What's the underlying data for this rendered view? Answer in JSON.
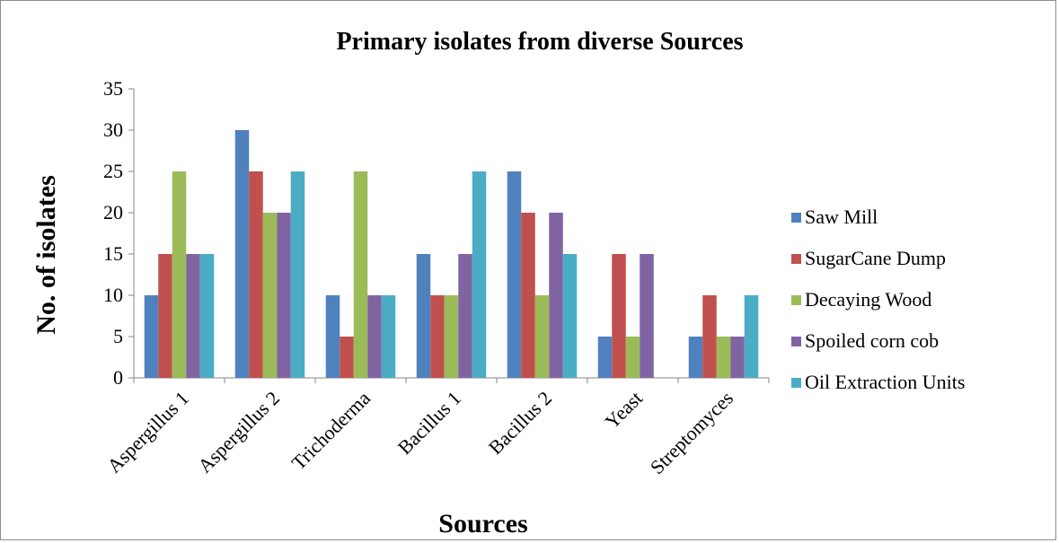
{
  "chart_data": {
    "type": "bar",
    "title": "Primary isolates from diverse Sources",
    "xlabel": "Sources",
    "ylabel": "No. of  isolates",
    "ylim": [
      0,
      35
    ],
    "yticks": [
      0,
      5,
      10,
      15,
      20,
      25,
      30,
      35
    ],
    "grid": false,
    "legend_position": "right",
    "categories": [
      "Aspergillus 1",
      "Aspergillus 2",
      "Trichoderma",
      "Bacillus 1",
      "Bacillus 2",
      "Yeast",
      "Streptomyces"
    ],
    "series": [
      {
        "name": "Saw Mill",
        "color": "#4f81bd",
        "values": [
          10,
          30,
          10,
          15,
          25,
          5,
          5
        ]
      },
      {
        "name": "SugarCane Dump",
        "color": "#c0504d",
        "values": [
          15,
          25,
          5,
          10,
          20,
          15,
          10
        ]
      },
      {
        "name": "Decaying Wood",
        "color": "#9bbb59",
        "values": [
          25,
          20,
          25,
          10,
          10,
          5,
          5
        ]
      },
      {
        "name": "Spoiled corn cob",
        "color": "#8064a2",
        "values": [
          15,
          20,
          10,
          15,
          20,
          15,
          5
        ]
      },
      {
        "name": "Oil Extraction Units",
        "color": "#4bacc6",
        "values": [
          15,
          25,
          10,
          25,
          15,
          0,
          10
        ]
      }
    ]
  }
}
